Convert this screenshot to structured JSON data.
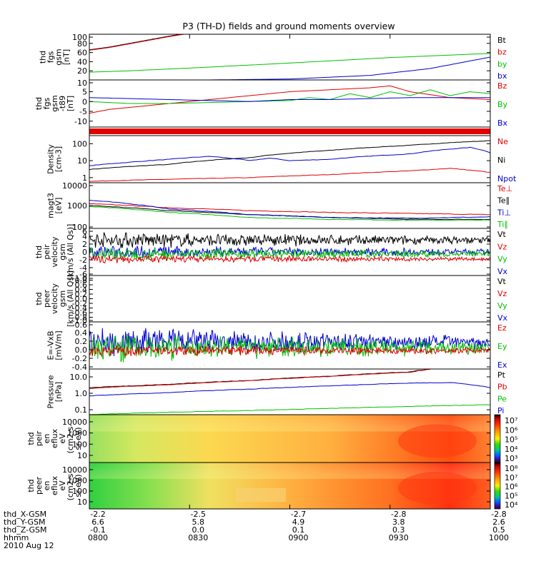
{
  "chart_data": {
    "title": "P3 (TH-D) fields and ground moments overview",
    "type": "line",
    "x": {
      "tick_labels": [
        "0800",
        "0830",
        "0900",
        "0930",
        "1000"
      ],
      "ephemeris": {
        "labels": [
          "thd_X-GSM",
          "thd_Y-GSM",
          "thd_Z-GSM",
          "hhmm",
          "2010 Aug 12"
        ],
        "rows": [
          [
            "-2.2",
            "-2.5",
            "-2.7",
            "-2.8",
            "-2.8"
          ],
          [
            "6.6",
            "5.8",
            "4.9",
            "3.8",
            "2.6"
          ],
          [
            "-0.1",
            "0.0",
            "0.1",
            "0.3",
            "0.5"
          ]
        ]
      }
    },
    "panels": [
      {
        "ylabel": [
          "thd",
          "fgs",
          "gsm",
          "[nT]"
        ],
        "ylim": [
          0,
          100
        ],
        "yticks": [
          "100",
          "80",
          "60",
          "40",
          "20"
        ],
        "legend": [
          {
            "name": "Bt",
            "color": "#000000"
          },
          {
            "name": "bz",
            "color": "#e00000"
          },
          {
            "name": "by",
            "color": "#00c000"
          },
          {
            "name": "bx",
            "color": "#0000d0"
          }
        ],
        "series": [
          {
            "color": "#000000",
            "x": [
              0,
              0.05,
              0.1,
              0.15,
              0.2,
              0.25
            ],
            "y": [
              66,
              72,
              80,
              88,
              96,
              103
            ]
          },
          {
            "color": "#e00000",
            "x": [
              0,
              0.05,
              0.1,
              0.15,
              0.2,
              0.25
            ],
            "y": [
              65,
              71,
              79,
              87,
              95,
              102
            ]
          },
          {
            "color": "#00c000",
            "x": [
              0,
              0.1,
              0.25,
              0.5,
              0.75,
              1.0
            ],
            "y": [
              17,
              20,
              26,
              37,
              49,
              58
            ]
          },
          {
            "color": "#0000d0",
            "x": [
              0,
              0.3,
              0.5,
              0.7,
              0.85,
              1.0
            ],
            "y": [
              0,
              0,
              2,
              10,
              25,
              50
            ]
          }
        ]
      },
      {
        "ylabel": [
          "thd",
          "fgs",
          "gsm",
          "-t89",
          "[nT]"
        ],
        "ylim": [
          -13,
          11
        ],
        "yticks": [
          "10",
          "5",
          "0",
          "-5",
          "-10"
        ],
        "legend": [
          {
            "name": "Bz",
            "color": "#e00000"
          },
          {
            "name": "By",
            "color": "#00c000"
          },
          {
            "name": "Bx",
            "color": "#0000d0"
          }
        ],
        "series": [
          {
            "color": "#e00000",
            "x": [
              0,
              0.05,
              0.1,
              0.2,
              0.3,
              0.4,
              0.5,
              0.6,
              0.7,
              0.75,
              0.8,
              0.9,
              1.0
            ],
            "y": [
              -6,
              -4,
              -3,
              -1,
              1,
              3,
              5,
              6,
              7,
              8,
              5,
              2,
              1
            ]
          },
          {
            "color": "#00c000",
            "x": [
              0,
              0.1,
              0.2,
              0.3,
              0.4,
              0.5,
              0.55,
              0.6,
              0.65,
              0.7,
              0.75,
              0.8,
              0.85,
              0.9,
              0.95,
              1.0
            ],
            "y": [
              0,
              -1,
              -1,
              -0.5,
              0,
              0.5,
              2,
              1,
              4,
              2,
              5,
              3,
              6,
              3,
              5,
              4
            ]
          },
          {
            "color": "#0000d0",
            "x": [
              0,
              0.2,
              0.4,
              0.5,
              0.6,
              0.8,
              1.0
            ],
            "y": [
              2,
              1,
              0,
              1,
              1,
              2,
              2
            ]
          }
        ]
      },
      {
        "ylabel": [],
        "type": "bar",
        "color": "#e00000"
      },
      {
        "ylabel": [
          "Density",
          "[cm-3]"
        ],
        "ylim": [
          0.5,
          300
        ],
        "scale": "log",
        "yticks": [
          "100",
          "10",
          "1"
        ],
        "legend": [
          {
            "name": "Ne",
            "color": "#e00000"
          },
          {
            "name": "Ni",
            "color": "#000000"
          },
          {
            "name": "Npot",
            "color": "#0000d0"
          }
        ],
        "series": [
          {
            "color": "#000000",
            "x": [
              0,
              0.2,
              0.4,
              0.6,
              0.8,
              1.0
            ],
            "y": [
              3,
              6,
              15,
              40,
              80,
              150
            ]
          },
          {
            "color": "#0000d0",
            "x": [
              0,
              0.1,
              0.2,
              0.3,
              0.4,
              0.45,
              0.5,
              0.6,
              0.8,
              0.95,
              1.0
            ],
            "y": [
              5,
              8,
              12,
              18,
              10,
              14,
              10,
              12,
              25,
              60,
              30
            ]
          },
          {
            "color": "#e00000",
            "x": [
              0,
              0.2,
              0.4,
              0.6,
              0.8,
              0.9,
              1.0
            ],
            "y": [
              0.6,
              0.8,
              1.0,
              1.5,
              2.5,
              3.5,
              2.0
            ]
          }
        ]
      },
      {
        "ylabel": [
          "magt3",
          "[eV]"
        ],
        "ylim": [
          100,
          10000
        ],
        "scale": "log",
        "yticks": [
          "10000",
          "1000",
          "100"
        ],
        "legend": [
          {
            "name": "Te⊥",
            "color": "#e00000"
          },
          {
            "name": "Te∥",
            "color": "#000000"
          },
          {
            "name": "Ti⊥",
            "color": "#0000d0"
          },
          {
            "name": "Ti∥",
            "color": "#00c000"
          }
        ],
        "series": [
          {
            "color": "#e00000",
            "x": [
              0,
              0.2,
              0.4,
              0.6,
              0.8,
              1.0
            ],
            "y": [
              1200,
              800,
              600,
              500,
              450,
              400
            ]
          },
          {
            "color": "#000000",
            "x": [
              0,
              0.2,
              0.4,
              0.6,
              0.8,
              1.0
            ],
            "y": [
              1000,
              600,
              400,
              300,
              250,
              250
            ]
          },
          {
            "color": "#0000d0",
            "x": [
              0,
              0.2,
              0.4,
              0.6,
              0.8,
              1.0
            ],
            "y": [
              1700,
              700,
              400,
              300,
              280,
              320
            ]
          },
          {
            "color": "#00c000",
            "x": [
              0,
              0.2,
              0.4,
              0.6,
              0.8,
              1.0
            ],
            "y": [
              900,
              500,
              300,
              250,
              230,
              230
            ]
          }
        ]
      },
      {
        "ylabel": [
          "thd",
          "peir",
          "velocity",
          "gsm",
          "[km/s (All Qs)]"
        ],
        "ylim": [
          -6,
          6
        ],
        "yticks": [
          "6",
          "4",
          "2",
          "0",
          "-2",
          "-4",
          "-6"
        ],
        "legend": [
          {
            "name": "Vt",
            "color": "#000000"
          },
          {
            "name": "Vz",
            "color": "#e00000"
          },
          {
            "name": "Vy",
            "color": "#00c000"
          },
          {
            "name": "Vx",
            "color": "#0000d0"
          }
        ],
        "series": [
          {
            "color": "#000000",
            "mean": 3,
            "amp": 1.2
          },
          {
            "color": "#0000d0",
            "mean": 0,
            "amp": 1.0
          },
          {
            "color": "#00c000",
            "mean": -0.5,
            "amp": 1.0
          },
          {
            "color": "#e00000",
            "mean": -1.8,
            "amp": 0.6
          }
        ]
      },
      {
        "ylabel": [
          "thd",
          "peer",
          "velocity",
          "gsm",
          "[km/s (All Qs)]"
        ],
        "ylim": [
          -1,
          1
        ],
        "yticks": [
          "1.0",
          "0.8",
          "0.6",
          "0.4",
          "0.2",
          "0.0",
          "-0.2",
          "-0.4",
          "-0.6",
          "-0.8",
          "-1.0"
        ],
        "legend": [
          {
            "name": "Vt",
            "color": "#000000"
          },
          {
            "name": "Vz",
            "color": "#e00000"
          },
          {
            "name": "Vy",
            "color": "#00c000"
          },
          {
            "name": "Vx",
            "color": "#0000d0"
          }
        ],
        "series": []
      },
      {
        "ylabel": [
          "E=-VxB",
          "[mV/m]"
        ],
        "ylim": [
          -0.45,
          0.65
        ],
        "yticks": [
          "0.6",
          "0.4",
          "0.2",
          "0.0",
          "-0.2",
          "-0.4"
        ],
        "legend": [
          {
            "name": "Ez",
            "color": "#e00000"
          },
          {
            "name": "Ey",
            "color": "#00c000"
          },
          {
            "name": "Ex",
            "color": "#0000d0"
          }
        ],
        "series": [
          {
            "color": "#0000d0",
            "mean": 0.18,
            "amp": 0.2
          },
          {
            "color": "#00c000",
            "mean": 0.05,
            "amp": 0.2
          },
          {
            "color": "#e00000",
            "mean": -0.02,
            "amp": 0.08
          }
        ]
      },
      {
        "ylabel": [
          "Pressure",
          "[nPa]"
        ],
        "ylim": [
          0.05,
          30
        ],
        "scale": "log",
        "yticks": [
          "10.0",
          "1.0",
          "0.1"
        ],
        "legend": [
          {
            "name": "Pt",
            "color": "#000000"
          },
          {
            "name": "Pb",
            "color": "#e00000"
          },
          {
            "name": "Pe",
            "color": "#00c000"
          },
          {
            "name": "Pi",
            "color": "#0000d0"
          }
        ],
        "series": [
          {
            "color": "#000000",
            "x": [
              0,
              0.2,
              0.4,
              0.6,
              0.8,
              0.85
            ],
            "y": [
              2.2,
              3.5,
              6,
              11,
              20,
              30
            ]
          },
          {
            "color": "#e00000",
            "x": [
              0,
              0.2,
              0.4,
              0.6,
              0.8,
              0.85
            ],
            "y": [
              2.0,
              3.3,
              5.8,
              10.5,
              19,
              29
            ]
          },
          {
            "color": "#0000d0",
            "x": [
              0,
              0.2,
              0.4,
              0.6,
              0.8,
              0.9,
              1.0
            ],
            "y": [
              0.7,
              1.1,
              1.8,
              2.8,
              4.2,
              4.5,
              2.2
            ]
          },
          {
            "color": "#00c000",
            "x": [
              0,
              0.2,
              0.4,
              0.6,
              0.8,
              1.0
            ],
            "y": [
              0.05,
              0.07,
              0.09,
              0.12,
              0.16,
              0.2
            ]
          }
        ]
      },
      {
        "ylabel": [
          "thd",
          "peir",
          "en",
          "eflux",
          "eV",
          "(cm2-s-",
          "sr-eV)"
        ],
        "type": "heatmap",
        "yticks": [
          "10000",
          "1000",
          "100",
          "10"
        ],
        "colorbar": [
          "10⁷",
          "10⁶",
          "10⁵",
          "10⁴",
          "10³"
        ]
      },
      {
        "ylabel": [
          "thd",
          "peer",
          "en",
          "eflux",
          "eV",
          "(cm2-s-",
          "sr-eV)"
        ],
        "type": "heatmap",
        "yticks": [
          "10000",
          "1000",
          "100",
          "10"
        ],
        "colorbar": [
          "10⁸",
          "10⁷",
          "10⁶",
          "10⁵",
          "10⁴"
        ]
      }
    ]
  }
}
